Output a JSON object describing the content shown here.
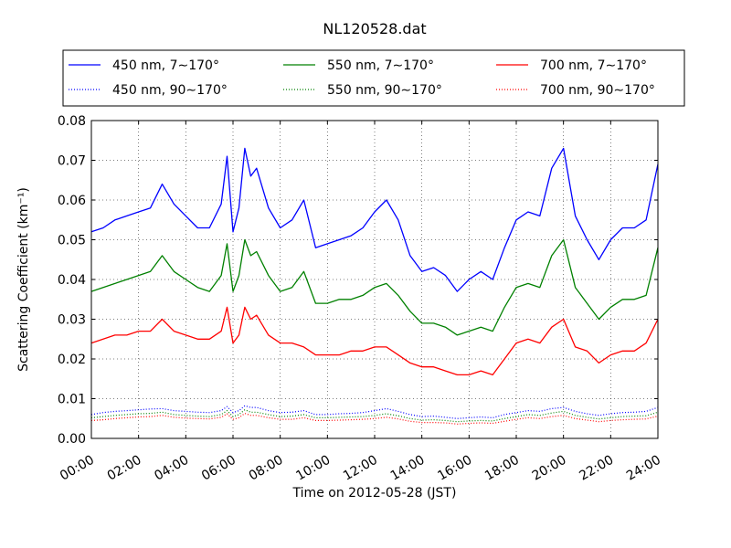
{
  "chart_data": {
    "type": "line",
    "title": "NL120528.dat",
    "xlabel": "Time on 2012-05-28 (JST)",
    "ylabel": "Scattering Coefficient (km⁻¹)",
    "xlim": [
      "00:00",
      "24:00"
    ],
    "ylim": [
      0.0,
      0.08
    ],
    "grid": true,
    "legend_position": "top-center, above plot",
    "legend_columns": 3,
    "xticks": [
      "00:00",
      "02:00",
      "04:00",
      "06:00",
      "08:00",
      "10:00",
      "12:00",
      "14:00",
      "16:00",
      "18:00",
      "20:00",
      "22:00",
      "24:00"
    ],
    "yticks": [
      "0.00",
      "0.01",
      "0.02",
      "0.03",
      "0.04",
      "0.05",
      "0.06",
      "0.07",
      "0.08"
    ],
    "x": [
      "00:00",
      "00:30",
      "01:00",
      "01:30",
      "02:00",
      "02:30",
      "03:00",
      "03:30",
      "04:00",
      "04:30",
      "05:00",
      "05:30",
      "05:45",
      "06:00",
      "06:15",
      "06:30",
      "06:45",
      "07:00",
      "07:30",
      "08:00",
      "08:30",
      "09:00",
      "09:30",
      "10:00",
      "10:30",
      "11:00",
      "11:30",
      "12:00",
      "12:30",
      "13:00",
      "13:30",
      "14:00",
      "14:30",
      "15:00",
      "15:30",
      "16:00",
      "16:30",
      "17:00",
      "17:30",
      "18:00",
      "18:30",
      "19:00",
      "19:30",
      "20:00",
      "20:30",
      "21:00",
      "21:30",
      "22:00",
      "22:30",
      "23:00",
      "23:30",
      "24:00"
    ],
    "series": [
      {
        "name": "450 nm, 7∼170°",
        "color": "#0000ff",
        "style": "solid",
        "values": [
          0.052,
          0.053,
          0.055,
          0.056,
          0.057,
          0.058,
          0.064,
          0.059,
          0.056,
          0.053,
          0.053,
          0.059,
          0.071,
          0.052,
          0.058,
          0.073,
          0.066,
          0.068,
          0.058,
          0.053,
          0.055,
          0.06,
          0.048,
          0.049,
          0.05,
          0.051,
          0.053,
          0.057,
          0.06,
          0.055,
          0.046,
          0.042,
          0.043,
          0.041,
          0.037,
          0.04,
          0.042,
          0.04,
          0.048,
          0.055,
          0.057,
          0.056,
          0.068,
          0.073,
          0.056,
          0.05,
          0.045,
          0.05,
          0.053,
          0.053,
          0.055,
          0.069
        ]
      },
      {
        "name": "450 nm, 90∼170°",
        "color": "#0000ff",
        "style": "dotted",
        "values": [
          0.006,
          0.0065,
          0.0068,
          0.007,
          0.0072,
          0.0074,
          0.0075,
          0.007,
          0.0068,
          0.0066,
          0.0065,
          0.007,
          0.008,
          0.0065,
          0.007,
          0.0082,
          0.0078,
          0.0078,
          0.007,
          0.0065,
          0.0066,
          0.007,
          0.006,
          0.006,
          0.0062,
          0.0063,
          0.0065,
          0.007,
          0.0075,
          0.0068,
          0.006,
          0.0055,
          0.0056,
          0.0053,
          0.005,
          0.0052,
          0.0054,
          0.0052,
          0.006,
          0.0065,
          0.007,
          0.0068,
          0.0075,
          0.0078,
          0.0068,
          0.0062,
          0.0058,
          0.0062,
          0.0065,
          0.0066,
          0.0068,
          0.0078
        ]
      },
      {
        "name": "550 nm, 7∼170°",
        "color": "#008000",
        "style": "solid",
        "values": [
          0.037,
          0.038,
          0.039,
          0.04,
          0.041,
          0.042,
          0.046,
          0.042,
          0.04,
          0.038,
          0.037,
          0.041,
          0.049,
          0.037,
          0.041,
          0.05,
          0.046,
          0.047,
          0.041,
          0.037,
          0.038,
          0.042,
          0.034,
          0.034,
          0.035,
          0.035,
          0.036,
          0.038,
          0.039,
          0.036,
          0.032,
          0.029,
          0.029,
          0.028,
          0.026,
          0.027,
          0.028,
          0.027,
          0.033,
          0.038,
          0.039,
          0.038,
          0.046,
          0.05,
          0.038,
          0.034,
          0.03,
          0.033,
          0.035,
          0.035,
          0.036,
          0.048
        ]
      },
      {
        "name": "550 nm, 90∼170°",
        "color": "#008000",
        "style": "dotted",
        "values": [
          0.0052,
          0.0055,
          0.0058,
          0.006,
          0.0062,
          0.0063,
          0.0066,
          0.006,
          0.0058,
          0.0056,
          0.0055,
          0.006,
          0.007,
          0.0055,
          0.006,
          0.0072,
          0.0066,
          0.0066,
          0.006,
          0.0055,
          0.0056,
          0.006,
          0.0052,
          0.0052,
          0.0053,
          0.0054,
          0.0055,
          0.0058,
          0.0062,
          0.0057,
          0.005,
          0.0046,
          0.0047,
          0.0045,
          0.0042,
          0.0044,
          0.0045,
          0.0044,
          0.005,
          0.0055,
          0.006,
          0.0058,
          0.0064,
          0.0068,
          0.0058,
          0.0053,
          0.0049,
          0.0052,
          0.0055,
          0.0056,
          0.0057,
          0.0066
        ]
      },
      {
        "name": "700 nm, 7∼170°",
        "color": "#ff0000",
        "style": "solid",
        "values": [
          0.024,
          0.025,
          0.026,
          0.026,
          0.027,
          0.027,
          0.03,
          0.027,
          0.026,
          0.025,
          0.025,
          0.027,
          0.033,
          0.024,
          0.026,
          0.033,
          0.03,
          0.031,
          0.026,
          0.024,
          0.024,
          0.023,
          0.021,
          0.021,
          0.021,
          0.022,
          0.022,
          0.023,
          0.023,
          0.021,
          0.019,
          0.018,
          0.018,
          0.017,
          0.016,
          0.016,
          0.017,
          0.016,
          0.02,
          0.024,
          0.025,
          0.024,
          0.028,
          0.03,
          0.023,
          0.022,
          0.019,
          0.021,
          0.022,
          0.022,
          0.024,
          0.03
        ]
      },
      {
        "name": "700 nm, 90∼170°",
        "color": "#ff0000",
        "style": "dotted",
        "values": [
          0.0045,
          0.0047,
          0.005,
          0.0052,
          0.0054,
          0.0055,
          0.0058,
          0.0053,
          0.0051,
          0.005,
          0.0049,
          0.0053,
          0.0062,
          0.0048,
          0.0052,
          0.0063,
          0.0058,
          0.0058,
          0.0052,
          0.0048,
          0.0048,
          0.0052,
          0.0045,
          0.0045,
          0.0046,
          0.0047,
          0.0048,
          0.005,
          0.0053,
          0.0049,
          0.0043,
          0.004,
          0.004,
          0.0039,
          0.0036,
          0.0038,
          0.0039,
          0.0038,
          0.0043,
          0.0048,
          0.0052,
          0.005,
          0.0055,
          0.0058,
          0.005,
          0.0046,
          0.0042,
          0.0045,
          0.0047,
          0.0048,
          0.0049,
          0.0056
        ]
      }
    ]
  }
}
